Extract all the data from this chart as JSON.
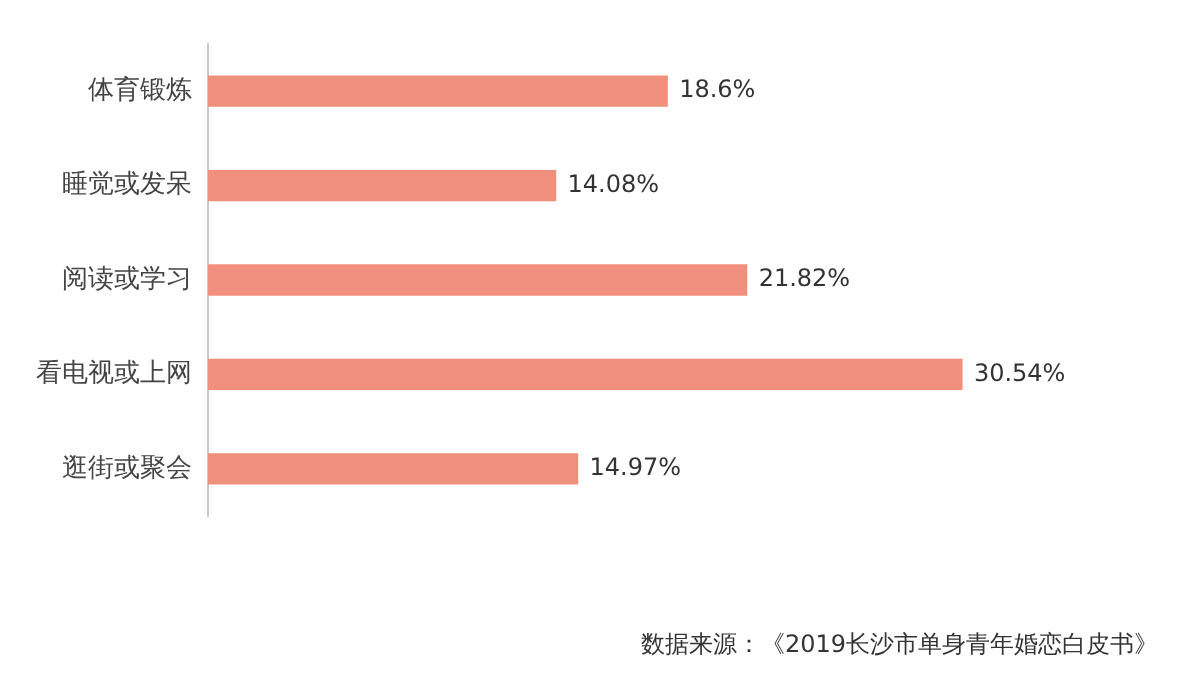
{
  "chart_data": {
    "type": "bar",
    "orientation": "horizontal",
    "categories": [
      "体育锻炼",
      "睡觉或发呆",
      "阅读或学习",
      "看电视或上网",
      "逛街或聚会"
    ],
    "values": [
      18.6,
      14.08,
      21.82,
      30.54,
      14.97
    ],
    "value_labels": [
      "18.6%",
      "14.08%",
      "21.82%",
      "30.54%",
      "14.97%"
    ],
    "color": "#f0907c",
    "tick_labels": "y",
    "grid": false,
    "legend": false,
    "annotations": [
      "数据来源：《2019长沙市单身青年婚恋白皮书》"
    ]
  }
}
